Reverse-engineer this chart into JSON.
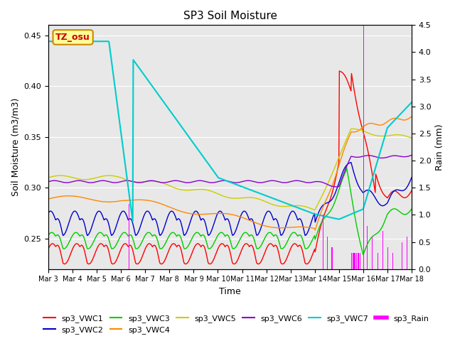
{
  "title": "SP3 Soil Moisture",
  "ylabel_left": "Soil Moisture (m3/m3)",
  "ylabel_right": "Rain (mm)",
  "xlabel": "Time",
  "ylim_left": [
    0.22,
    0.46
  ],
  "ylim_right": [
    0.0,
    4.5
  ],
  "background_color": "#e8e8e8",
  "xtick_labels": [
    "Mar 3",
    "Mar 4",
    "Mar 5",
    "Mar 6",
    "Mar 7",
    "Mar 8",
    "Mar 9",
    "Mar 10",
    "Mar 11",
    "Mar 12",
    "Mar 13",
    "Mar 14",
    "Mar 15",
    "Mar 16",
    "Mar 17",
    "Mar 18"
  ],
  "annotation_box": "TZ_osu",
  "annotation_box_bg": "#ffff99",
  "annotation_box_border": "#cc8800",
  "series_colors": {
    "sp3_VWC1": "#ff0000",
    "sp3_VWC2": "#0000cc",
    "sp3_VWC3": "#00cc00",
    "sp3_VWC4": "#ff8800",
    "sp3_VWC5": "#cccc00",
    "sp3_VWC6": "#8800cc",
    "sp3_VWC7": "#00cccc",
    "sp3_Rain": "#ff00ff"
  }
}
